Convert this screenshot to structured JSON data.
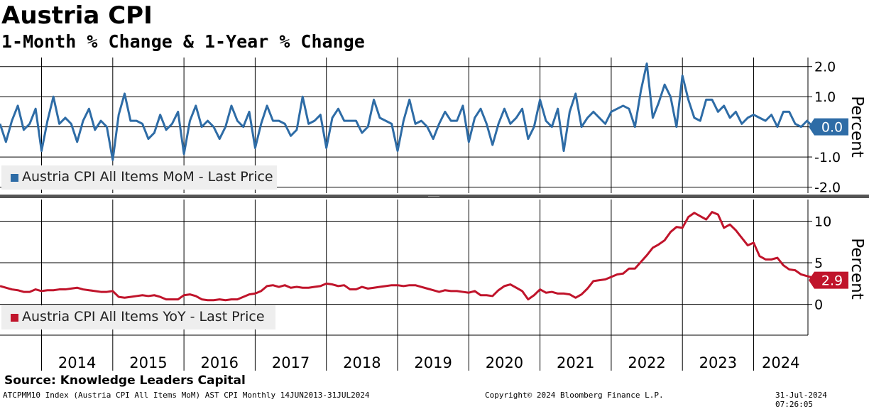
{
  "header": {
    "title": "Austria CPI",
    "subtitle": "1-Month % Change & 1-Year % Change"
  },
  "footer": {
    "source": "Source: Knowledge Leaders Capital",
    "ticker_info": "ATCPMM10 Index (Austria CPI All Items MoM) AST CPI  Monthly 14JUN2013-31JUL2024",
    "copyright": "Copyright© 2024 Bloomberg Finance L.P.",
    "timestamp": "31-Jul-2024 07:26:05"
  },
  "colors": {
    "mom": "#2e6ca6",
    "yoy": "#c0142b",
    "grid": "#000000",
    "divider": "#555555"
  },
  "chart_data": [
    {
      "type": "line",
      "series": [
        {
          "name": "Austria CPI All Items MoM - Last Price",
          "start": "2013-06",
          "frequency": "monthly",
          "values": [
            0.1,
            -0.5,
            0.2,
            0.7,
            -0.1,
            0.1,
            0.6,
            -0.8,
            0.2,
            1.0,
            0.1,
            0.3,
            0.1,
            -0.5,
            0.2,
            0.6,
            -0.1,
            0.2,
            0.0,
            -1.1,
            0.4,
            1.1,
            0.2,
            0.2,
            0.1,
            -0.4,
            -0.2,
            0.4,
            -0.1,
            0.1,
            0.5,
            -0.9,
            0.2,
            0.7,
            0.0,
            0.2,
            0.0,
            -0.4,
            0.0,
            0.7,
            0.2,
            0.0,
            0.5,
            -0.7,
            0.1,
            0.7,
            0.2,
            0.2,
            0.1,
            -0.3,
            -0.1,
            1.0,
            0.1,
            0.2,
            0.4,
            -0.7,
            0.3,
            0.6,
            0.2,
            0.2,
            0.2,
            -0.2,
            0.0,
            0.9,
            0.3,
            0.2,
            0.1,
            -0.8,
            0.2,
            0.9,
            0.1,
            0.2,
            0.0,
            -0.4,
            0.1,
            0.5,
            0.2,
            0.2,
            0.7,
            -0.5,
            0.3,
            0.6,
            0.1,
            -0.6,
            0.1,
            0.6,
            0.1,
            0.3,
            0.6,
            -0.4,
            0.0,
            0.9,
            0.2,
            0.0,
            0.6,
            -0.8,
            0.5,
            1.1,
            0.0,
            0.3,
            0.5,
            0.3,
            0.1,
            0.5,
            0.6,
            0.7,
            0.6,
            0.0,
            1.2,
            2.1,
            0.3,
            0.8,
            1.4,
            1.0,
            0.0,
            1.7,
            0.9,
            0.3,
            0.2,
            0.9,
            0.9,
            0.5,
            0.7,
            0.3,
            0.5,
            0.1,
            0.3,
            0.4,
            0.3,
            0.2,
            0.4,
            0.0,
            0.5,
            0.5,
            0.1,
            0.0,
            0.2,
            0.0
          ],
          "last_label": "0.0"
        }
      ],
      "ylabel": "Percent",
      "ylim": [
        -2.2,
        2.3
      ],
      "yticks": [
        "2.0",
        "1.0",
        "0.0",
        "-1.0",
        "-2.0"
      ],
      "ytick_values": [
        2,
        1,
        0,
        -1,
        -2
      ],
      "grid": true,
      "legend_position": "bottom-left"
    },
    {
      "type": "line",
      "series": [
        {
          "name": "Austria CPI All Items YoY - Last Price",
          "start": "2013-06",
          "frequency": "monthly",
          "values": [
            2.2,
            2.0,
            1.8,
            1.7,
            1.5,
            1.5,
            1.8,
            1.6,
            1.7,
            1.7,
            1.8,
            1.8,
            1.9,
            2.0,
            1.8,
            1.7,
            1.6,
            1.5,
            1.5,
            1.6,
            0.9,
            0.8,
            0.9,
            1.0,
            1.1,
            1.0,
            1.1,
            0.9,
            0.6,
            0.6,
            0.6,
            1.1,
            1.2,
            1.0,
            0.6,
            0.5,
            0.5,
            0.6,
            0.5,
            0.6,
            0.6,
            0.9,
            1.2,
            1.3,
            1.6,
            2.2,
            2.3,
            2.1,
            2.3,
            2.0,
            2.1,
            2.0,
            2.0,
            2.1,
            2.2,
            2.5,
            2.4,
            2.2,
            2.3,
            1.8,
            1.8,
            2.1,
            1.9,
            2.0,
            2.1,
            2.2,
            2.3,
            2.3,
            2.2,
            2.3,
            2.3,
            2.1,
            1.9,
            1.7,
            1.5,
            1.7,
            1.6,
            1.6,
            1.5,
            1.4,
            1.6,
            1.1,
            1.1,
            1.0,
            1.7,
            2.2,
            2.4,
            2.0,
            1.6,
            0.6,
            1.1,
            1.8,
            1.4,
            1.5,
            1.3,
            1.3,
            1.2,
            0.8,
            1.2,
            1.9,
            2.8,
            2.9,
            3.0,
            3.3,
            3.6,
            3.7,
            4.3,
            4.3,
            5.1,
            5.9,
            6.8,
            7.2,
            7.7,
            8.7,
            9.3,
            9.2,
            10.5,
            11.0,
            10.6,
            10.2,
            11.1,
            10.8,
            9.2,
            9.6,
            8.9,
            8.0,
            7.1,
            7.4,
            5.8,
            5.4,
            5.4,
            5.6,
            4.7,
            4.2,
            4.1,
            3.6,
            3.4,
            3.2,
            3.0,
            2.9
          ],
          "last_label": "2.9"
        }
      ],
      "ylabel": "Percent",
      "ylim": [
        -3.7,
        12.6
      ],
      "yticks": [
        "10",
        "5",
        "0"
      ],
      "ytick_values": [
        10,
        5,
        0
      ],
      "grid": true,
      "legend_position": "bottom-left"
    }
  ],
  "x_axis": {
    "start": "2013-06",
    "end": "2024-07",
    "labels": [
      "2014",
      "2015",
      "2016",
      "2017",
      "2018",
      "2019",
      "2020",
      "2021",
      "2022",
      "2023",
      "2024"
    ]
  }
}
